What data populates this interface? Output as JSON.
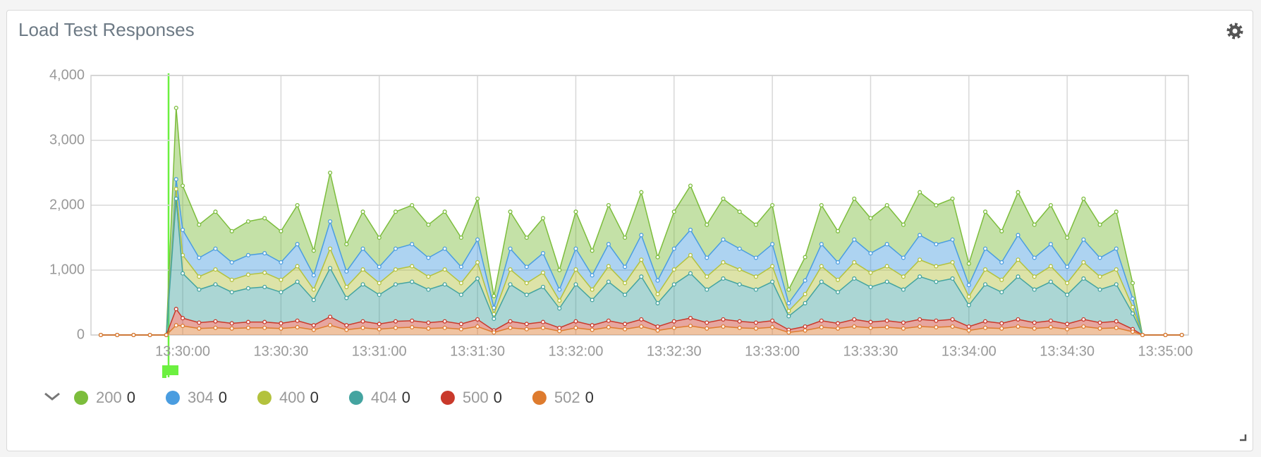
{
  "chart_data": {
    "type": "stacked-area",
    "title": "Load Test Responses",
    "x": [
      "13:29:35",
      "13:29:40",
      "13:29:45",
      "13:29:50",
      "13:29:55",
      "13:29:58",
      "13:30:00",
      "13:30:05",
      "13:30:10",
      "13:30:15",
      "13:30:20",
      "13:30:25",
      "13:30:30",
      "13:30:35",
      "13:30:40",
      "13:30:45",
      "13:30:50",
      "13:30:55",
      "13:31:00",
      "13:31:05",
      "13:31:10",
      "13:31:15",
      "13:31:20",
      "13:31:25",
      "13:31:30",
      "13:31:35",
      "13:31:40",
      "13:31:45",
      "13:31:50",
      "13:31:55",
      "13:32:00",
      "13:32:05",
      "13:32:10",
      "13:32:15",
      "13:32:20",
      "13:32:25",
      "13:32:30",
      "13:32:35",
      "13:32:40",
      "13:32:45",
      "13:32:50",
      "13:32:55",
      "13:33:00",
      "13:33:05",
      "13:33:10",
      "13:33:15",
      "13:33:20",
      "13:33:25",
      "13:33:30",
      "13:33:35",
      "13:33:40",
      "13:33:45",
      "13:33:50",
      "13:33:55",
      "13:34:00",
      "13:34:05",
      "13:34:10",
      "13:34:15",
      "13:34:20",
      "13:34:25",
      "13:34:30",
      "13:34:35",
      "13:34:40",
      "13:34:45",
      "13:34:50",
      "13:34:53",
      "13:35:00",
      "13:35:05"
    ],
    "series": [
      {
        "name": "200",
        "current": 0,
        "color": "#7cbd3c",
        "values": [
          0,
          0,
          0,
          0,
          0,
          1100,
          680,
          510,
          570,
          480,
          520,
          540,
          480,
          600,
          380,
          750,
          420,
          570,
          450,
          570,
          600,
          510,
          570,
          450,
          630,
          180,
          570,
          450,
          540,
          300,
          570,
          380,
          600,
          450,
          660,
          360,
          570,
          680,
          510,
          630,
          570,
          510,
          600,
          210,
          360,
          600,
          480,
          630,
          540,
          600,
          510,
          660,
          600,
          630,
          330,
          570,
          480,
          660,
          510,
          600,
          450,
          630,
          510,
          570,
          240,
          0,
          0,
          0
        ]
      },
      {
        "name": "304",
        "current": 0,
        "color": "#4a9de0",
        "values": [
          0,
          0,
          0,
          0,
          0,
          150,
          390,
          290,
          320,
          270,
          300,
          300,
          270,
          340,
          220,
          420,
          240,
          320,
          250,
          320,
          340,
          290,
          320,
          250,
          350,
          100,
          320,
          250,
          300,
          170,
          320,
          220,
          340,
          250,
          380,
          210,
          320,
          390,
          290,
          350,
          320,
          290,
          340,
          120,
          210,
          340,
          270,
          350,
          300,
          340,
          290,
          380,
          340,
          350,
          180,
          320,
          270,
          380,
          290,
          340,
          250,
          350,
          290,
          320,
          130,
          0,
          0,
          0
        ]
      },
      {
        "name": "400",
        "current": 0,
        "color": "#b3c23d",
        "values": [
          0,
          0,
          0,
          0,
          0,
          150,
          280,
          200,
          230,
          190,
          210,
          220,
          190,
          240,
          160,
          300,
          170,
          230,
          180,
          230,
          240,
          200,
          230,
          180,
          250,
          70,
          230,
          180,
          220,
          120,
          230,
          160,
          240,
          180,
          260,
          140,
          230,
          280,
          200,
          250,
          230,
          200,
          240,
          80,
          140,
          240,
          190,
          250,
          220,
          240,
          200,
          260,
          240,
          250,
          130,
          230,
          190,
          260,
          200,
          240,
          180,
          250,
          200,
          230,
          100,
          0,
          0,
          0
        ]
      },
      {
        "name": "404",
        "current": 0,
        "color": "#44a4a0",
        "values": [
          0,
          0,
          0,
          0,
          0,
          1700,
          690,
          510,
          570,
          480,
          520,
          540,
          480,
          600,
          390,
          750,
          420,
          570,
          450,
          570,
          600,
          510,
          570,
          450,
          630,
          180,
          570,
          450,
          540,
          300,
          570,
          390,
          600,
          450,
          660,
          360,
          570,
          690,
          510,
          630,
          570,
          510,
          600,
          210,
          360,
          600,
          480,
          630,
          540,
          600,
          510,
          660,
          600,
          630,
          330,
          570,
          480,
          660,
          510,
          600,
          450,
          630,
          510,
          570,
          240,
          0,
          0,
          0
        ]
      },
      {
        "name": "500",
        "current": 0,
        "color": "#c9392b",
        "values": [
          0,
          0,
          0,
          0,
          0,
          250,
          120,
          90,
          100,
          80,
          90,
          90,
          80,
          100,
          70,
          130,
          70,
          100,
          80,
          100,
          100,
          90,
          100,
          80,
          110,
          30,
          100,
          80,
          90,
          50,
          100,
          70,
          100,
          80,
          110,
          60,
          100,
          120,
          90,
          110,
          100,
          90,
          100,
          40,
          60,
          100,
          80,
          110,
          90,
          100,
          90,
          110,
          100,
          110,
          60,
          100,
          80,
          110,
          90,
          100,
          80,
          110,
          90,
          100,
          40,
          0,
          0,
          0
        ]
      },
      {
        "name": "502",
        "current": 0,
        "color": "#de7b2e",
        "values": [
          0,
          0,
          0,
          0,
          0,
          150,
          140,
          100,
          110,
          100,
          110,
          110,
          100,
          120,
          80,
          150,
          80,
          110,
          90,
          110,
          120,
          100,
          110,
          90,
          130,
          40,
          110,
          90,
          110,
          60,
          110,
          80,
          120,
          90,
          130,
          70,
          110,
          140,
          100,
          130,
          110,
          100,
          120,
          40,
          70,
          120,
          100,
          130,
          110,
          120,
          100,
          130,
          120,
          130,
          70,
          110,
          100,
          130,
          100,
          120,
          90,
          130,
          100,
          110,
          50,
          0,
          0,
          0
        ]
      }
    ],
    "xlim": [
      "13:29:32",
      "13:35:07"
    ],
    "xticks": [
      "13:30:00",
      "13:30:30",
      "13:31:00",
      "13:31:30",
      "13:32:00",
      "13:32:30",
      "13:33:00",
      "13:33:30",
      "13:34:00",
      "13:34:30",
      "13:35:00"
    ],
    "ylim": [
      0,
      4000
    ],
    "yticks": [
      0,
      {
        "value": 1000,
        "label": "1,000"
      },
      {
        "value": 2000,
        "label": "2,000"
      },
      {
        "value": 3000,
        "label": "3,000"
      },
      {
        "value": 4000,
        "label": "4,000"
      }
    ],
    "grid": true
  }
}
